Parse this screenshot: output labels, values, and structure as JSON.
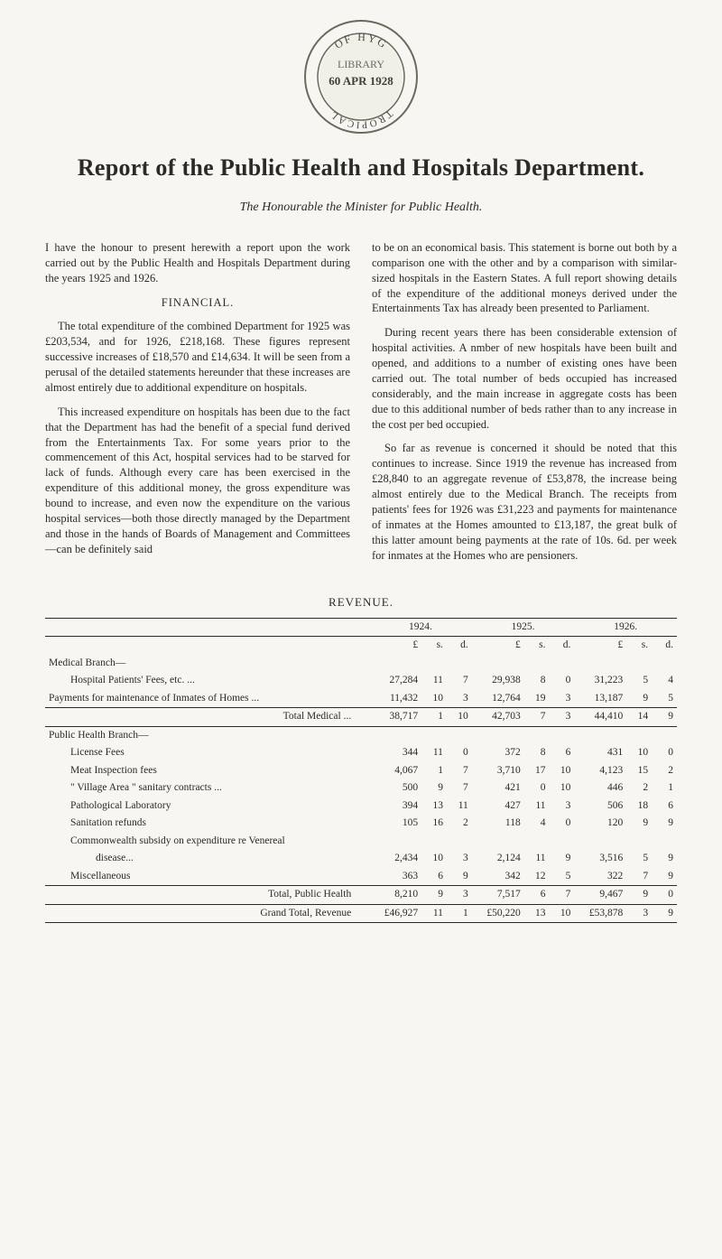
{
  "seal": {
    "ring_stroke": "#6b6a5e",
    "inner_fill": "#e9e5d8",
    "text_color": "#4a4a40",
    "top_text": "OF HYG",
    "mid1": "LIBRARY",
    "mid2": "60 APR 1928",
    "bottom_text": "TROPICAL"
  },
  "title": "Report of the Public Health and Hospitals Department.",
  "subtitle": "The Honourable the Minister for Public Health.",
  "financial_heading": "FINANCIAL.",
  "paragraphs": {
    "l1": "I have the honour to present herewith a report upon the work carried out by the Public Health and Hospitals Department during the years 1925 and 1926.",
    "l2": "The total expenditure of the combined Department for 1925 was £203,534, and for 1926, £218,168. These figures represent successive increases of £18,570 and £14,634. It will be seen from a perusal of the detailed statements hereunder that these increases are almost entirely due to additional expenditure on hospitals.",
    "l3": "This increased expenditure on hospitals has been due to the fact that the Department has had the benefit of a special fund derived from the Entertainments Tax. For some years prior to the commencement of this Act, hospital services had to be starved for lack of funds. Although every care has been exercised in the expenditure of this additional money, the gross expenditure was bound to increase, and even now the expenditure on the various hospital services—both those directly managed by the Department and those in the hands of Boards of Management and Committees—can be definitely said",
    "r1": "to be on an economical basis. This statement is borne out both by a comparison one with the other and by a comparison with similar-sized hospitals in the Eastern States. A full report showing details of the expenditure of the additional moneys derived under the Entertainments Tax has already been presented to Parliament.",
    "r2": "During recent years there has been considerable extension of hospital activities. A nmber of new hospitals have been built and opened, and additions to a number of existing ones have been carried out. The total number of beds occupied has increased considerably, and the main increase in aggregate costs has been due to this additional number of beds rather than to any increase in the cost per bed occupied.",
    "r3": "So far as revenue is concerned it should be noted that this continues to increase. Since 1919 the revenue has increased from £28,840 to an aggregate revenue of £53,878, the increase being almost entirely due to the Medical Branch. The receipts from patients' fees for 1926 was £31,223 and payments for maintenance of inmates at the Homes amounted to £13,187, the great bulk of this latter amount being payments at the rate of 10s. 6d. per week for inmates at the Homes who are pensioners."
  },
  "revenue_heading": "REVENUE.",
  "revenue": {
    "year_cols": [
      "1924.",
      "1925.",
      "1926."
    ],
    "psd_header": [
      "£",
      "s.",
      "d."
    ],
    "rows": [
      {
        "label": "Medical Branch—",
        "class": "noval"
      },
      {
        "label": "Hospital Patients' Fees, etc. ...",
        "indent": 2,
        "vals": [
          [
            "27,284",
            "11",
            "7"
          ],
          [
            "29,938",
            "8",
            "0"
          ],
          [
            "31,223",
            "5",
            "4"
          ]
        ]
      },
      {
        "label": "Payments for maintenance of Inmates of Homes ...",
        "indent": 0,
        "vals": [
          [
            "11,432",
            "10",
            "3"
          ],
          [
            "12,764",
            "19",
            "3"
          ],
          [
            "13,187",
            "9",
            "5"
          ]
        ]
      },
      {
        "label": "Total Medical ...",
        "class": "subtotal",
        "right": true,
        "vals": [
          [
            "38,717",
            "1",
            "10"
          ],
          [
            "42,703",
            "7",
            "3"
          ],
          [
            "44,410",
            "14",
            "9"
          ]
        ]
      },
      {
        "label": "Public Health Branch—",
        "class": "noval"
      },
      {
        "label": "License Fees",
        "indent": 2,
        "vals": [
          [
            "344",
            "11",
            "0"
          ],
          [
            "372",
            "8",
            "6"
          ],
          [
            "431",
            "10",
            "0"
          ]
        ]
      },
      {
        "label": "Meat Inspection fees",
        "indent": 2,
        "vals": [
          [
            "4,067",
            "1",
            "7"
          ],
          [
            "3,710",
            "17",
            "10"
          ],
          [
            "4,123",
            "15",
            "2"
          ]
        ]
      },
      {
        "label": "\" Village Area \" sanitary contracts ...",
        "indent": 2,
        "vals": [
          [
            "500",
            "9",
            "7"
          ],
          [
            "421",
            "0",
            "10"
          ],
          [
            "446",
            "2",
            "1"
          ]
        ]
      },
      {
        "label": "Pathological Laboratory",
        "indent": 2,
        "vals": [
          [
            "394",
            "13",
            "11"
          ],
          [
            "427",
            "11",
            "3"
          ],
          [
            "506",
            "18",
            "6"
          ]
        ]
      },
      {
        "label": "Sanitation refunds",
        "indent": 2,
        "vals": [
          [
            "105",
            "16",
            "2"
          ],
          [
            "118",
            "4",
            "0"
          ],
          [
            "120",
            "9",
            "9"
          ]
        ]
      },
      {
        "label": "Commonwealth subsidy on expenditure re Venereal",
        "indent": 2,
        "class": "noval"
      },
      {
        "label": "disease...",
        "indent": 2,
        "extra_indent": true,
        "vals": [
          [
            "2,434",
            "10",
            "3"
          ],
          [
            "2,124",
            "11",
            "9"
          ],
          [
            "3,516",
            "5",
            "9"
          ]
        ]
      },
      {
        "label": "Miscellaneous",
        "indent": 2,
        "vals": [
          [
            "363",
            "6",
            "9"
          ],
          [
            "342",
            "12",
            "5"
          ],
          [
            "322",
            "7",
            "9"
          ]
        ]
      },
      {
        "label": "Total, Public Health",
        "class": "subtotal",
        "right": true,
        "vals": [
          [
            "8,210",
            "9",
            "3"
          ],
          [
            "7,517",
            "6",
            "7"
          ],
          [
            "9,467",
            "9",
            "0"
          ]
        ]
      },
      {
        "label": "Grand Total, Revenue",
        "class": "grand",
        "right": true,
        "vals": [
          [
            "£46,927",
            "11",
            "1"
          ],
          [
            "£50,220",
            "13",
            "10"
          ],
          [
            "£53,878",
            "3",
            "9"
          ]
        ]
      }
    ]
  },
  "colors": {
    "page_bg": "#f7f6f2",
    "text": "#2a2a26",
    "rule": "#2a2a26"
  }
}
